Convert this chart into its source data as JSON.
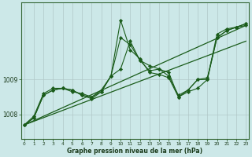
{
  "xlabel": "Graphe pression niveau de la mer (hPa)",
  "bg_color": "#cce8e8",
  "grid_color": "#b0c8c8",
  "line_color": "#1a5c1a",
  "marker_color": "#1a5c1a",
  "series": [
    [
      1007.7,
      1007.9,
      1008.55,
      1008.7,
      1008.75,
      1008.7,
      1008.55,
      1008.5,
      1008.65,
      1009.1,
      1009.3,
      1010.1,
      1009.55,
      1009.4,
      1009.3,
      1009.2,
      1008.5,
      1008.65,
      1008.75,
      1009.0,
      1010.3,
      1010.45,
      1010.5,
      1010.55
    ],
    [
      1007.7,
      1007.9,
      1008.55,
      1008.7,
      1008.75,
      1008.7,
      1008.55,
      1008.45,
      1008.65,
      1009.1,
      1010.7,
      1009.85,
      1009.6,
      1009.2,
      1009.15,
      1009.05,
      1008.5,
      1008.7,
      1009.0,
      1009.05,
      1010.2,
      1010.4,
      1010.5,
      1010.6
    ],
    [
      1007.7,
      1007.95,
      1008.6,
      1008.75,
      1008.75,
      1008.65,
      1008.6,
      1008.5,
      1008.7,
      1009.1,
      1010.2,
      1010.0,
      1009.55,
      1009.25,
      1009.3,
      1009.1,
      1008.55,
      1008.7,
      1009.0,
      1009.0,
      1010.2,
      1010.4,
      1010.5,
      1010.6
    ]
  ],
  "trend_lines": [
    {
      "x0": 0,
      "y0": 1007.7,
      "x1": 23,
      "y1": 1010.1
    },
    {
      "x0": 0,
      "y0": 1007.7,
      "x1": 23,
      "y1": 1010.55
    }
  ],
  "yticks": [
    1008,
    1009
  ],
  "ymin": 1007.3,
  "ymax": 1011.2,
  "xmin": 0,
  "xmax": 23
}
